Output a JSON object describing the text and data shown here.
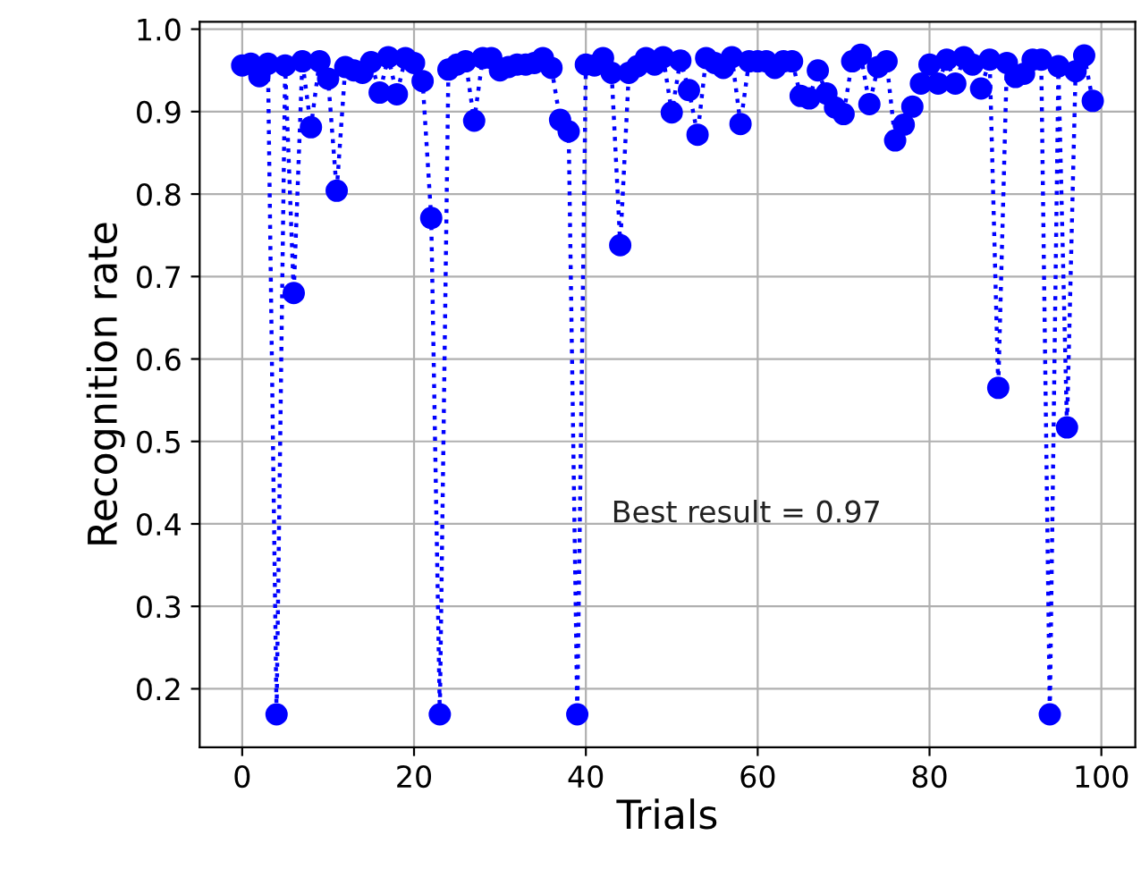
{
  "chart_data": {
    "type": "line",
    "xlabel": "Trials",
    "ylabel": "Recognition rate",
    "annotations": [
      "Best result = 0.97"
    ],
    "x": [
      0,
      1,
      2,
      3,
      4,
      5,
      6,
      7,
      8,
      9,
      10,
      11,
      12,
      13,
      14,
      15,
      16,
      17,
      18,
      19,
      20,
      21,
      22,
      23,
      24,
      25,
      26,
      27,
      28,
      29,
      30,
      31,
      32,
      33,
      34,
      35,
      36,
      37,
      38,
      39,
      40,
      41,
      42,
      43,
      44,
      45,
      46,
      47,
      48,
      49,
      50,
      51,
      52,
      53,
      54,
      55,
      56,
      57,
      58,
      59,
      60,
      61,
      62,
      63,
      64,
      65,
      66,
      67,
      68,
      69,
      70,
      71,
      72,
      73,
      74,
      75,
      76,
      77,
      78,
      79,
      80,
      81,
      82,
      83,
      84,
      85,
      86,
      87,
      88,
      89,
      90,
      91,
      92,
      93,
      94,
      95,
      96,
      97,
      98,
      99
    ],
    "series": [
      {
        "color": "#0000ff",
        "values": [
          0.956,
          0.958,
          0.943,
          0.958,
          0.169,
          0.956,
          0.68,
          0.961,
          0.881,
          0.961,
          0.94,
          0.804,
          0.954,
          0.95,
          0.947,
          0.96,
          0.923,
          0.966,
          0.921,
          0.965,
          0.959,
          0.937,
          0.771,
          0.169,
          0.951,
          0.957,
          0.961,
          0.889,
          0.965,
          0.965,
          0.95,
          0.954,
          0.957,
          0.957,
          0.959,
          0.965,
          0.953,
          0.89,
          0.876,
          0.169,
          0.957,
          0.956,
          0.965,
          0.947,
          0.738,
          0.947,
          0.955,
          0.965,
          0.957,
          0.966,
          0.899,
          0.962,
          0.926,
          0.872,
          0.965,
          0.959,
          0.953,
          0.966,
          0.885,
          0.961,
          0.961,
          0.961,
          0.953,
          0.961,
          0.961,
          0.919,
          0.916,
          0.95,
          0.922,
          0.905,
          0.897,
          0.961,
          0.969,
          0.909,
          0.954,
          0.961,
          0.865,
          0.884,
          0.906,
          0.934,
          0.957,
          0.934,
          0.963,
          0.934,
          0.966,
          0.957,
          0.928,
          0.963,
          0.565,
          0.959,
          0.942,
          0.946,
          0.963,
          0.963,
          0.169,
          0.955,
          0.517,
          0.949,
          0.968,
          0.913
        ]
      }
    ],
    "xlim": [
      -4.95,
      103.95
    ],
    "ylim": [
      0.129,
      1.009
    ],
    "xticks": [
      0,
      20,
      40,
      60,
      80,
      100
    ],
    "yticks": [
      {
        "value": 0.2,
        "label": "0.2"
      },
      {
        "value": 0.3,
        "label": "0.3"
      },
      {
        "value": 0.4,
        "label": "0.4"
      },
      {
        "value": 0.5,
        "label": "0.5"
      },
      {
        "value": 0.6,
        "label": "0.6"
      },
      {
        "value": 0.7,
        "label": "0.7"
      },
      {
        "value": 0.8,
        "label": "0.8"
      },
      {
        "value": 0.9,
        "label": "0.9"
      },
      {
        "value": 1.0,
        "label": "1.0"
      }
    ],
    "grid": true,
    "marker": "circle",
    "line_style": "dotted",
    "legend": false
  }
}
